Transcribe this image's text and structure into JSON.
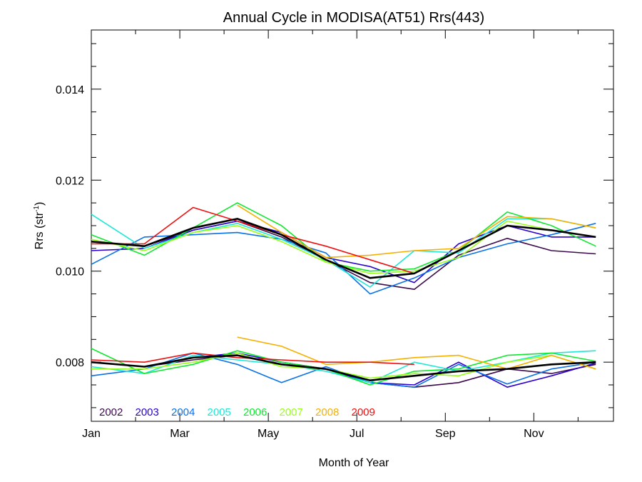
{
  "chart_data": {
    "type": "line",
    "title": "Annual Cycle in MODISA(AT51) Rrs(443)",
    "xlabel": "Month of Year",
    "ylabel_main": "Rrs (str",
    "ylabel_sup": "-1",
    "ylabel_close": ")",
    "xlim": [
      1,
      12.8
    ],
    "ylim": [
      0.0067,
      0.0153
    ],
    "x_ticks": [
      {
        "value": 1,
        "label": "Jan"
      },
      {
        "value": 3,
        "label": "Mar"
      },
      {
        "value": 5,
        "label": "May"
      },
      {
        "value": 7,
        "label": "Jul"
      },
      {
        "value": 9,
        "label": "Sep"
      },
      {
        "value": 11,
        "label": "Nov"
      }
    ],
    "y_ticks": [
      {
        "value": 0.008,
        "label": "0.008"
      },
      {
        "value": 0.01,
        "label": "0.010"
      },
      {
        "value": 0.012,
        "label": "0.012"
      },
      {
        "value": 0.014,
        "label": "0.014"
      }
    ],
    "x": [
      1,
      2.2,
      3.3,
      4.3,
      5.3,
      6.3,
      7.3,
      8.3,
      9.3,
      10.4,
      11.4,
      12.4
    ],
    "series": [
      {
        "name": "2002",
        "color": "#3b0a4d",
        "upper": [
          10.65,
          10.55,
          10.9,
          11.1,
          10.75,
          10.25,
          9.75,
          9.6,
          10.35,
          10.72,
          10.45,
          10.38
        ],
        "lower": [
          8.0,
          7.9,
          8.05,
          8.15,
          7.95,
          7.85,
          7.55,
          7.45,
          7.55,
          7.85,
          7.75,
          7.95
        ]
      },
      {
        "name": "2003",
        "color": "#2a00d0",
        "upper": [
          10.45,
          10.5,
          10.9,
          11.1,
          10.85,
          10.3,
          10.1,
          9.75,
          10.6,
          11.0,
          10.75,
          10.75
        ],
        "lower": [
          8.0,
          7.9,
          8.1,
          8.2,
          8.0,
          7.85,
          7.55,
          7.5,
          8.0,
          7.45,
          7.7,
          7.98
        ]
      },
      {
        "name": "2004",
        "color": "#0a72e8",
        "upper": [
          10.15,
          10.75,
          10.8,
          10.85,
          10.7,
          10.4,
          9.5,
          9.85,
          10.3,
          10.6,
          10.8,
          11.05
        ],
        "lower": [
          7.7,
          7.85,
          8.2,
          7.95,
          7.55,
          7.9,
          7.55,
          7.45,
          7.95,
          7.52,
          7.85,
          8.0
        ]
      },
      {
        "name": "2005",
        "color": "#1de8d6",
        "upper": [
          11.25,
          10.5,
          10.85,
          11.05,
          10.7,
          10.25,
          9.65,
          10.45,
          10.4,
          11.15,
          11.15,
          10.95
        ],
        "lower": [
          7.9,
          7.75,
          8.15,
          8.05,
          7.95,
          7.8,
          7.55,
          8.0,
          7.8,
          8.0,
          8.2,
          8.25
        ]
      },
      {
        "name": "2006",
        "color": "#10e830",
        "upper": [
          10.8,
          10.35,
          10.95,
          11.5,
          11.0,
          10.2,
          10.0,
          10.05,
          10.45,
          11.3,
          11.0,
          10.55
        ],
        "lower": [
          8.3,
          7.75,
          7.95,
          8.25,
          8.0,
          7.85,
          7.5,
          7.8,
          7.85,
          8.15,
          8.2,
          8.02
        ]
      },
      {
        "name": "2007",
        "color": "#9aff1a",
        "upper": [
          10.7,
          10.45,
          10.85,
          11.0,
          10.65,
          10.2,
          9.95,
          10.0,
          10.3,
          11.1,
          10.9,
          10.75
        ],
        "lower": [
          7.85,
          7.85,
          8.0,
          8.2,
          7.9,
          7.85,
          7.65,
          7.75,
          7.7,
          8.0,
          8.15,
          7.85
        ]
      },
      {
        "name": "2008",
        "color": "#f5b000",
        "upper": [
          null,
          null,
          null,
          11.45,
          10.85,
          10.3,
          10.35,
          10.45,
          10.5,
          11.2,
          11.15,
          10.95
        ],
        "lower": [
          null,
          null,
          null,
          8.55,
          8.35,
          7.95,
          8.0,
          8.1,
          8.15,
          7.85,
          8.15,
          7.85
        ]
      },
      {
        "name": "2009",
        "color": "#ee1010",
        "upper": [
          10.6,
          10.6,
          11.4,
          11.1,
          10.8,
          10.55,
          10.25,
          9.95,
          null,
          null,
          null,
          null
        ],
        "lower": [
          8.05,
          8.0,
          8.2,
          8.1,
          8.05,
          8.0,
          8.0,
          7.95,
          null,
          null,
          null,
          null
        ]
      },
      {
        "name": "",
        "color": "#000000",
        "width": 2.6,
        "upper": [
          10.65,
          10.55,
          10.95,
          11.15,
          10.8,
          10.25,
          9.85,
          9.95,
          10.45,
          11.0,
          10.9,
          10.75
        ],
        "lower": [
          8.0,
          7.9,
          8.1,
          8.15,
          7.95,
          7.85,
          7.6,
          7.7,
          7.8,
          7.85,
          7.95,
          8.0
        ]
      }
    ],
    "y_scale_note": "values in units of 1e-3 str^-1",
    "grid": false,
    "legend_placement": "bottom-left"
  }
}
